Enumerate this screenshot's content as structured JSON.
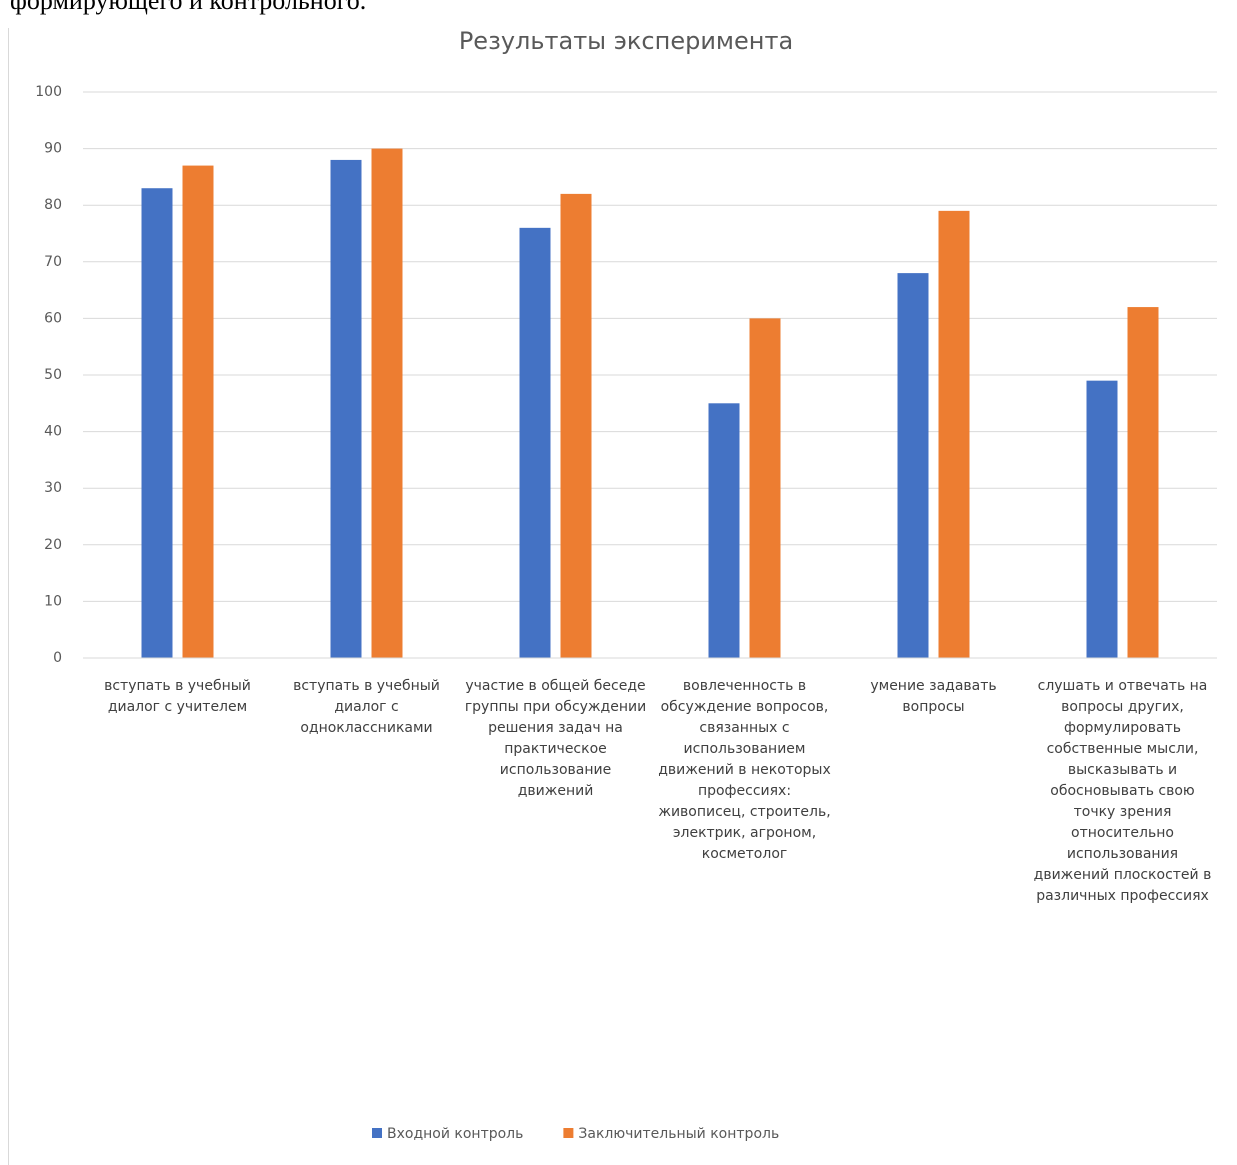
{
  "page_text": "формирующего и контрольного.",
  "chart_data": {
    "type": "bar",
    "title": "Результаты эксперимента",
    "categories": [
      "вступать в учебный диалог с учителем",
      "вступать в учебный диалог с одноклассниками",
      "участие в общей беседе группы при обсуждении решения задач на практическое использование движений",
      "вовлеченность в обсуждение вопросов, связанных с использованием движений в некоторых профессиях: живописец, строитель, электрик, агроном, косметолог",
      "умение задавать вопросы",
      "слушать и отвечать на вопросы других, формулировать собственные мысли, высказывать и обосновывать свою точку зрения относительно использования движений плоскостей в различных профессиях"
    ],
    "series": [
      {
        "name": "Входной контроль",
        "color": "#4472c4",
        "values": [
          83,
          88,
          76,
          45,
          68,
          49
        ]
      },
      {
        "name": "Заключительный контроль",
        "color": "#ed7d31",
        "values": [
          87,
          90,
          82,
          60,
          79,
          62
        ]
      }
    ],
    "ylim": [
      0,
      100
    ],
    "yticks": [
      0,
      10,
      20,
      30,
      40,
      50,
      60,
      70,
      80,
      90,
      100
    ],
    "grid": true,
    "legend": "bottom"
  }
}
